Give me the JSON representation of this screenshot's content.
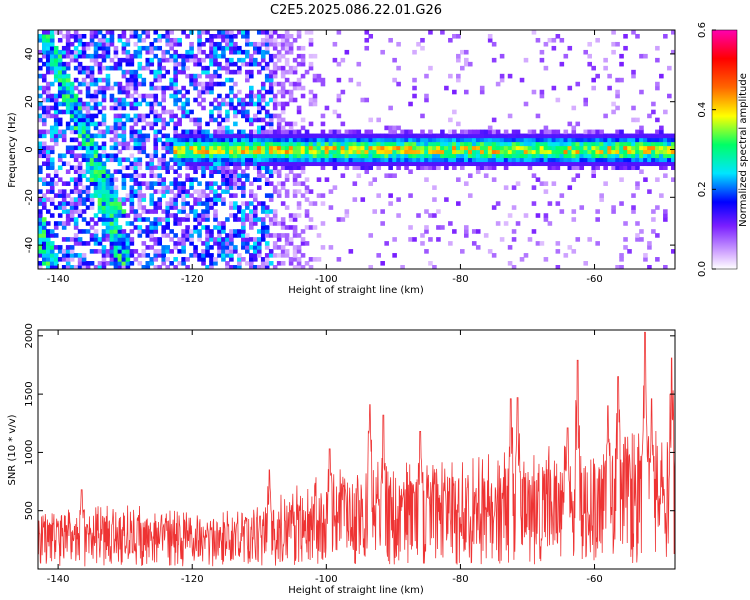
{
  "title": "C2E5.2025.086.22.01.G26",
  "chart_data": [
    {
      "type": "heatmap",
      "xlabel": "Height of straight line (km)",
      "ylabel": "Frequency (Hz)",
      "xlim": [
        -143,
        -48
      ],
      "ylim": [
        -50,
        50
      ],
      "x_ticks": [
        -140,
        -120,
        -100,
        -80,
        -60
      ],
      "y_ticks": [
        -40,
        -20,
        0,
        20,
        40
      ],
      "colorbar": {
        "label": "Normalized spectral amplitude",
        "range": [
          0,
          0.6
        ],
        "ticks": [
          0.0,
          0.2,
          0.4,
          0.6
        ],
        "colors": [
          "#ffffff",
          "#d9b3ff",
          "#7a1fff",
          "#0000ff",
          "#00e5ff",
          "#00ff66",
          "#ffff00",
          "#ff6600",
          "#ff0000",
          "#ff00b0"
        ]
      },
      "features": [
        {
          "kind": "horizontal_band",
          "frequency_hz": 0,
          "x_start": -123,
          "x_end": -48,
          "half_width_hz": 6
        },
        {
          "kind": "diagonal_track",
          "from": [
            -142,
            48
          ],
          "to": [
            -131,
            -28
          ]
        },
        {
          "kind": "diagonal_track",
          "from": [
            -135,
            -5
          ],
          "to": [
            -130,
            -48
          ]
        },
        {
          "kind": "diagonal_track",
          "from": [
            -143,
            -30
          ],
          "to": [
            -141,
            -48
          ]
        }
      ]
    },
    {
      "type": "line",
      "xlabel": "Height of straight line (km)",
      "ylabel": "SNR (10 * v/v)",
      "xlim": [
        -143,
        -48
      ],
      "ylim": [
        0,
        2050
      ],
      "x_ticks": [
        -140,
        -120,
        -100,
        -80,
        -60
      ],
      "y_ticks": [
        500,
        1000,
        1500,
        2000
      ],
      "color": "#ee3333",
      "envelope": {
        "x": [
          -143,
          -130,
          -120,
          -110,
          -105,
          -100,
          -90,
          -80,
          -70,
          -60,
          -55,
          -50,
          -48
        ],
        "baseline": [
          200,
          220,
          200,
          250,
          300,
          350,
          380,
          380,
          400,
          420,
          450,
          450,
          450
        ],
        "upper": [
          500,
          560,
          480,
          540,
          700,
          850,
          950,
          950,
          1050,
          1100,
          1200,
          1250,
          1200
        ]
      },
      "peaks": [
        {
          "x": -136.5,
          "y": 680
        },
        {
          "x": -108.5,
          "y": 850
        },
        {
          "x": -99.5,
          "y": 1030
        },
        {
          "x": -93.5,
          "y": 1410
        },
        {
          "x": -91.5,
          "y": 1320
        },
        {
          "x": -86,
          "y": 1180
        },
        {
          "x": -72.5,
          "y": 1460
        },
        {
          "x": -71.5,
          "y": 1470
        },
        {
          "x": -64,
          "y": 1210
        },
        {
          "x": -62.5,
          "y": 1790
        },
        {
          "x": -58,
          "y": 1400
        },
        {
          "x": -56.5,
          "y": 1650
        },
        {
          "x": -52.5,
          "y": 2030
        },
        {
          "x": -51.5,
          "y": 1460
        },
        {
          "x": -48.5,
          "y": 1810
        }
      ]
    }
  ]
}
